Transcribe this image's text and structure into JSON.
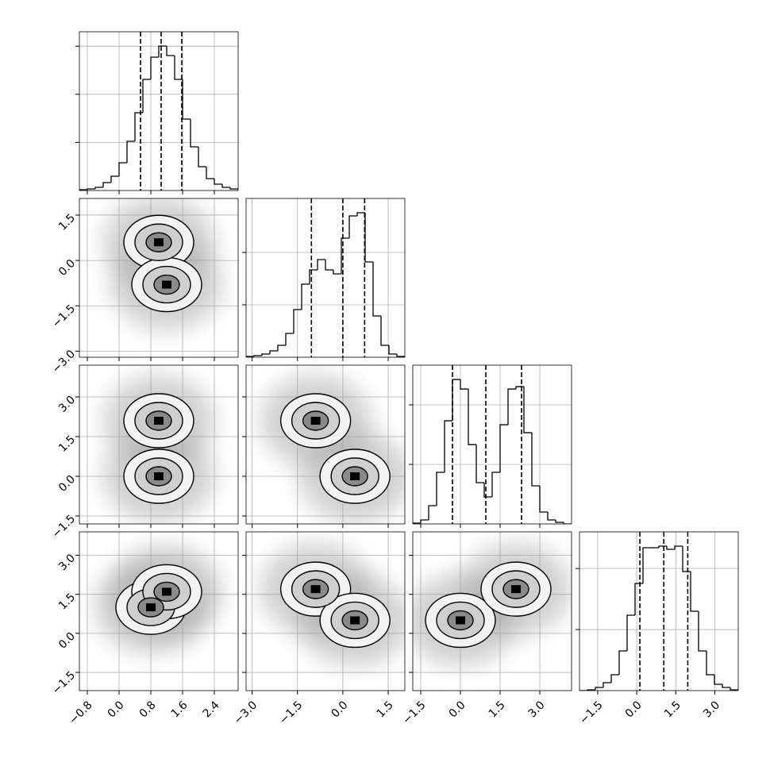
{
  "chart_data": {
    "type": "corner",
    "color": "#000000",
    "grid": true,
    "variables": [
      {
        "xlim": [
          -1.0,
          3.0
        ],
        "ticks": [
          {
            "value": -0.8,
            "label": "−0.8"
          },
          {
            "value": 0,
            "label": "0.0"
          },
          0.8,
          1.6,
          2.4
        ],
        "bins": [
          -1.0,
          -0.8,
          -0.6,
          -0.4,
          -0.2,
          0,
          0.2,
          0.4,
          0.6,
          0.8,
          1.0,
          1.2,
          1.4,
          1.6,
          1.8,
          2.0,
          2.2,
          2.4,
          2.6,
          2.8,
          3.0
        ],
        "counts": [
          16,
          33,
          66,
          165,
          297,
          578,
          1023,
          1617,
          2310,
          2772,
          3003,
          2805,
          2310,
          1485,
          908,
          495,
          248,
          132,
          66,
          33
        ],
        "hist_ylim": [
          0,
          3300
        ],
        "hist_yticks": [
          1000,
          2000,
          3000
        ],
        "quantiles": [
          0.54,
          1.06,
          1.58
        ]
      },
      {
        "xlim": [
          -3.2,
          2.05
        ],
        "ticks": [
          {
            "value": -3.0,
            "label": "−3.0"
          },
          {
            "value": -1.5,
            "label": "−1.5"
          },
          {
            "value": 0,
            "label": "0.0"
          },
          1.5
        ],
        "bins": [
          -3.2,
          -2.9375,
          -2.675,
          -2.4125,
          -2.15,
          -1.8875,
          -1.625,
          -1.3625,
          -1.1,
          -0.8375,
          -0.575,
          -0.3125,
          -0.05,
          0.2125,
          0.475,
          0.7375,
          1.0,
          1.2625,
          1.525,
          1.7875,
          2.05
        ],
        "counts": [
          15,
          30,
          61,
          121,
          227,
          455,
          909,
          1394,
          1667,
          1864,
          1667,
          1591,
          2273,
          2697,
          2757,
          1818,
          788,
          227,
          61,
          15
        ],
        "hist_ylim": [
          0,
          3030
        ],
        "hist_yticks": [
          1000,
          2000
        ],
        "quantiles": [
          -1.04,
          0.0,
          0.72
        ]
      },
      {
        "xlim": [
          -1.8,
          4.2
        ],
        "ticks": [
          {
            "value": -1.5,
            "label": "−1.5"
          },
          {
            "value": 0,
            "label": "0.0"
          },
          1.5,
          {
            "value": 3.0,
            "label": "3.0"
          }
        ],
        "bins": [
          -1.8,
          -1.5,
          -1.2,
          -0.9,
          -0.6,
          -0.3,
          0,
          0.3,
          0.6,
          0.9,
          1.2,
          1.5,
          1.8,
          2.1,
          2.4,
          2.7,
          3.0,
          3.3,
          3.6,
          3.9,
          4.2
        ],
        "counts": [
          13,
          67,
          307,
          867,
          1733,
          2426,
          2266,
          1333,
          693,
          453,
          867,
          1666,
          2266,
          2306,
          1533,
          640,
          200,
          67,
          27,
          0
        ],
        "hist_ylim": [
          0,
          2667
        ],
        "hist_yticks": [
          1000,
          2000
        ],
        "quantiles": [
          -0.3,
          0.96,
          2.31
        ]
      },
      {
        "xlim": [
          -2.2,
          3.9
        ],
        "ticks": [
          {
            "value": -1.5,
            "label": "−1.5"
          },
          {
            "value": 0,
            "label": "0.0"
          },
          1.5,
          {
            "value": 3.0,
            "label": "3.0"
          }
        ],
        "bins": [
          -2.2,
          -1.895,
          -1.59,
          -1.285,
          -0.98,
          -0.675,
          -0.37,
          -0.065,
          0.24,
          0.545,
          0.85,
          1.155,
          1.46,
          1.765,
          2.07,
          2.375,
          2.68,
          2.985,
          3.29,
          3.595,
          3.9
        ],
        "counts": [
          0,
          13,
          52,
          130,
          260,
          650,
          1235,
          1755,
          2340,
          2340,
          2366,
          2314,
          2366,
          1950,
          1300,
          650,
          260,
          104,
          52,
          13
        ],
        "hist_ylim": [
          0,
          2600
        ],
        "hist_yticks": [
          1000,
          2000
        ],
        "quantiles": [
          0.12,
          1.04,
          1.96
        ]
      }
    ],
    "pairs": [
      {
        "x": 0,
        "y": 1,
        "modes": [
          {
            "x": 1.0,
            "y": 0.6
          },
          {
            "x": 1.2,
            "y": -0.8
          }
        ]
      },
      {
        "x": 0,
        "y": 2,
        "modes": [
          {
            "x": 1.0,
            "y": 2.1
          },
          {
            "x": 1.0,
            "y": 0.0
          }
        ]
      },
      {
        "x": 1,
        "y": 2,
        "modes": [
          {
            "x": -0.9,
            "y": 2.1
          },
          {
            "x": 0.4,
            "y": 0.0
          }
        ]
      },
      {
        "x": 0,
        "y": 3,
        "modes": [
          {
            "x": 0.8,
            "y": 1.0
          },
          {
            "x": 1.2,
            "y": 1.6
          }
        ]
      },
      {
        "x": 1,
        "y": 3,
        "modes": [
          {
            "x": -0.9,
            "y": 1.7
          },
          {
            "x": 0.4,
            "y": 0.5
          }
        ]
      },
      {
        "x": 2,
        "y": 3,
        "modes": [
          {
            "x": 0.0,
            "y": 0.5
          },
          {
            "x": 2.1,
            "y": 1.7
          }
        ]
      }
    ]
  }
}
